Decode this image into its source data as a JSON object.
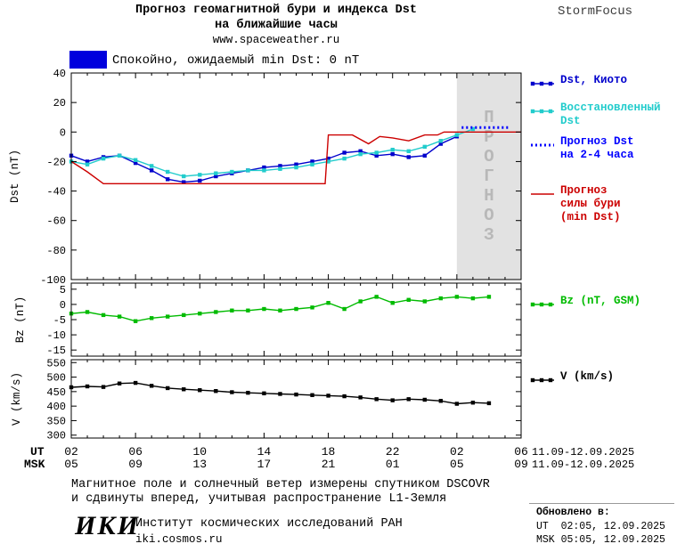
{
  "header": {
    "title_line1": "Прогноз геомагнитной бури и индекса Dst",
    "title_line2": "на ближайшие часы",
    "url": "www.spaceweather.ru",
    "brand": "StormFocus"
  },
  "status_banner": {
    "box_color": "#0000dd",
    "text": "Спокойно, ожидаемый min Dst: 0 nT"
  },
  "legend": {
    "items": [
      {
        "label": "Dst, Киото",
        "color": "#0000cc",
        "swatch": "squares"
      },
      {
        "label": "Восстановленный\nDst",
        "color": "#22cccc",
        "swatch": "squares"
      },
      {
        "label": "Прогноз Dst\nна 2-4 часа",
        "color": "#0000ff",
        "swatch": "dotted"
      },
      {
        "label": "Прогноз\nсилы бури\n(min Dst)",
        "color": "#cc0000",
        "swatch": "line"
      },
      {
        "label": "Bz (nT, GSM)",
        "color": "#00bb00",
        "swatch": "squares"
      },
      {
        "label": "V (km/s)",
        "color": "#000000",
        "swatch": "squares"
      }
    ]
  },
  "chart_data": [
    {
      "type": "line",
      "name": "dst",
      "ylabel": "Dst (nT)",
      "ylim": [
        -100,
        40
      ],
      "yticks": [
        40,
        20,
        0,
        -20,
        -40,
        -60,
        -80,
        -100
      ],
      "xlim": [
        2,
        30
      ],
      "xticks_major": [
        2,
        6,
        10,
        14,
        18,
        22,
        26,
        30
      ],
      "region": {
        "x0": 26,
        "x1": 30,
        "color": "#e2e2e2",
        "label": "ПРОГНОЗ",
        "label_color": "#b8b8b8"
      },
      "series": [
        {
          "name": "Dst, Киото",
          "color": "#0000cc",
          "marker": "square",
          "line": "solid",
          "x": [
            2,
            3,
            4,
            5,
            6,
            7,
            8,
            9,
            10,
            11,
            12,
            13,
            14,
            15,
            16,
            17,
            18,
            19,
            20,
            21,
            22,
            23,
            24,
            25,
            26
          ],
          "y": [
            -16,
            -20,
            -17,
            -16,
            -21,
            -26,
            -32,
            -34,
            -33,
            -30,
            -28,
            -26,
            -24,
            -23,
            -22,
            -20,
            -18,
            -14,
            -13,
            -16,
            -15,
            -17,
            -16,
            -8,
            -3
          ]
        },
        {
          "name": "Восстановленный Dst",
          "color": "#22cccc",
          "marker": "square",
          "line": "solid",
          "x": [
            2,
            3,
            4,
            5,
            6,
            7,
            8,
            9,
            10,
            11,
            12,
            13,
            14,
            15,
            16,
            17,
            18,
            19,
            20,
            21,
            22,
            23,
            24,
            25,
            26,
            27
          ],
          "y": [
            -20,
            -22,
            -18,
            -16,
            -19,
            -23,
            -27,
            -30,
            -29,
            -28,
            -27,
            -26,
            -26,
            -25,
            -24,
            -22,
            -20,
            -18,
            -15,
            -14,
            -12,
            -13,
            -10,
            -6,
            -2,
            2
          ]
        },
        {
          "name": "Прогноз Dst на 2-4 часа",
          "color": "#0000ff",
          "marker": "none",
          "line": "dotted",
          "width": 3,
          "x": [
            26.3,
            29.3
          ],
          "y": [
            3,
            3
          ]
        },
        {
          "name": "Прогноз силы бури (min Dst)",
          "color": "#cc0000",
          "marker": "none",
          "line": "solid",
          "x": [
            2,
            3,
            4,
            17.8,
            18,
            19.5,
            20.5,
            21.2,
            22,
            23,
            24,
            24.8,
            25.2,
            30
          ],
          "y": [
            -20,
            -27,
            -35,
            -35,
            -2,
            -2,
            -8,
            -3,
            -4,
            -6,
            -2,
            -2,
            0,
            0
          ]
        }
      ]
    },
    {
      "type": "line",
      "name": "bz",
      "ylabel": "Bz (nT)",
      "ylim": [
        -17,
        7
      ],
      "yticks": [
        5,
        0,
        -5,
        -10,
        -15
      ],
      "xlim": [
        2,
        30
      ],
      "xticks_major": [
        2,
        6,
        10,
        14,
        18,
        22,
        26,
        30
      ],
      "series": [
        {
          "name": "Bz (nT, GSM)",
          "color": "#00bb00",
          "marker": "square",
          "line": "solid",
          "x": [
            2,
            3,
            4,
            5,
            6,
            7,
            8,
            9,
            10,
            11,
            12,
            13,
            14,
            15,
            16,
            17,
            18,
            19,
            20,
            21,
            22,
            23,
            24,
            25,
            26,
            27,
            28
          ],
          "y": [
            -3,
            -2.5,
            -3.5,
            -4,
            -5.5,
            -4.5,
            -4,
            -3.5,
            -3,
            -2.5,
            -2,
            -2,
            -1.5,
            -2,
            -1.5,
            -1,
            0.5,
            -1.5,
            1,
            2.5,
            0.5,
            1.5,
            1,
            2,
            2.5,
            2,
            2.5
          ]
        }
      ]
    },
    {
      "type": "line",
      "name": "v",
      "ylabel": "V (km/s)",
      "ylim": [
        290,
        560
      ],
      "yticks": [
        550,
        500,
        450,
        400,
        350,
        300
      ],
      "xlim": [
        2,
        30
      ],
      "xticks_major": [
        2,
        6,
        10,
        14,
        18,
        22,
        26,
        30
      ],
      "series": [
        {
          "name": "V (km/s)",
          "color": "#000000",
          "marker": "square",
          "line": "solid",
          "x": [
            2,
            3,
            4,
            5,
            6,
            7,
            8,
            9,
            10,
            11,
            12,
            13,
            14,
            15,
            16,
            17,
            18,
            19,
            20,
            21,
            22,
            23,
            24,
            25,
            26,
            27,
            28
          ],
          "y": [
            465,
            468,
            466,
            478,
            480,
            470,
            462,
            458,
            455,
            452,
            448,
            446,
            444,
            442,
            440,
            438,
            436,
            434,
            430,
            424,
            420,
            424,
            422,
            418,
            408,
            412,
            410
          ]
        }
      ]
    }
  ],
  "xaxis": {
    "rows": [
      {
        "label": "UT",
        "ticks": [
          "02",
          "06",
          "10",
          "14",
          "18",
          "22",
          "02",
          "06"
        ],
        "date": "11.09-12.09.2025"
      },
      {
        "label": "MSK",
        "ticks": [
          "05",
          "09",
          "13",
          "17",
          "21",
          "01",
          "05",
          "09"
        ],
        "date": "11.09-12.09.2025"
      }
    ]
  },
  "footer": {
    "note_line1": "Магнитное поле и солнечный ветер измерены спутником DSCOVR",
    "note_line2": "и сдвинуты вперед, учитывая распространение L1-Земля",
    "logo": "ИКИ",
    "institute": "Институт космических исследований РАН",
    "site": "iki.cosmos.ru",
    "updated_label": "Обновлено в:",
    "updated_ut": "UT  02:05, 12.09.2025",
    "updated_msk": "MSK 05:05, 12.09.2025"
  }
}
